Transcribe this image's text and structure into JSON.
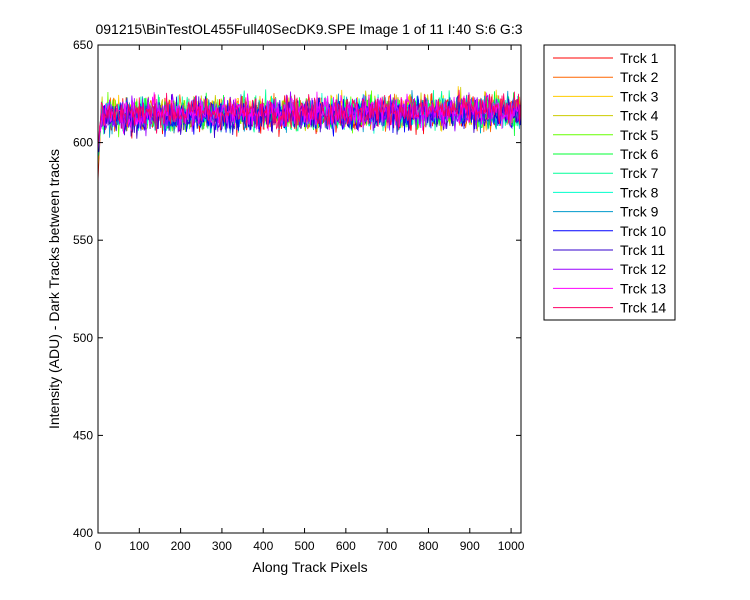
{
  "chart_data": {
    "type": "line",
    "title": "091215\\BinTestOL455Full40SecDK9.SPE  Image 1 of 11  I:40  S:6  G:3",
    "xlabel": "Along Track Pixels",
    "ylabel": "Intensity (ADU) - Dark Tracks between tracks",
    "xlim": [
      0,
      1024
    ],
    "ylim": [
      400,
      650
    ],
    "xticks": [
      0,
      100,
      200,
      300,
      400,
      500,
      600,
      700,
      800,
      900,
      1000
    ],
    "yticks": [
      400,
      450,
      500,
      550,
      600,
      650
    ],
    "grid": false,
    "legend_position": "outside-right",
    "noise_range": [
      603,
      628
    ],
    "series": [
      {
        "name": "Trck 1",
        "color": "#ff0000",
        "start_value": 580,
        "mean": 613,
        "end_mean": 615
      },
      {
        "name": "Trck 2",
        "color": "#ff6600",
        "start_value": 585,
        "mean": 614,
        "end_mean": 616
      },
      {
        "name": "Trck 3",
        "color": "#ffcc00",
        "start_value": 588,
        "mean": 615,
        "end_mean": 617
      },
      {
        "name": "Trck 4",
        "color": "#cccc00",
        "start_value": 590,
        "mean": 615,
        "end_mean": 617
      },
      {
        "name": "Trck 5",
        "color": "#66ff00",
        "start_value": 592,
        "mean": 614,
        "end_mean": 616
      },
      {
        "name": "Trck 6",
        "color": "#00ff33",
        "start_value": 592,
        "mean": 614,
        "end_mean": 616
      },
      {
        "name": "Trck 7",
        "color": "#00ff99",
        "start_value": 593,
        "mean": 614,
        "end_mean": 616
      },
      {
        "name": "Trck 8",
        "color": "#00ffcc",
        "start_value": 594,
        "mean": 614,
        "end_mean": 616
      },
      {
        "name": "Trck 9",
        "color": "#0099cc",
        "start_value": 595,
        "mean": 614,
        "end_mean": 616
      },
      {
        "name": "Trck 10",
        "color": "#0000ff",
        "start_value": 595,
        "mean": 613,
        "end_mean": 615
      },
      {
        "name": "Trck 11",
        "color": "#3300cc",
        "start_value": 596,
        "mean": 613,
        "end_mean": 615
      },
      {
        "name": "Trck 12",
        "color": "#9900ff",
        "start_value": 596,
        "mean": 614,
        "end_mean": 616
      },
      {
        "name": "Trck 13",
        "color": "#ff00ff",
        "start_value": 597,
        "mean": 615,
        "end_mean": 617
      },
      {
        "name": "Trck 14",
        "color": "#ff0066",
        "start_value": 598,
        "mean": 615,
        "end_mean": 617
      }
    ]
  }
}
